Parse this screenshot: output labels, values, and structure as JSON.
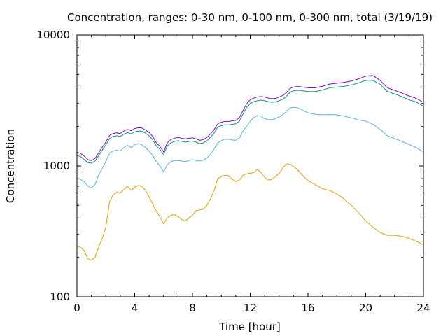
{
  "chart_data": {
    "type": "line",
    "title": "Concentration, ranges: 0-30 nm, 0-100 nm, 0-300 nm, total (3/19/19)",
    "xlabel": "Time [hour]",
    "ylabel": "Concentration",
    "xlim": [
      0,
      24
    ],
    "ylim": [
      100,
      10000
    ],
    "yscale": "log",
    "xticks": [
      "0",
      "4",
      "8",
      "12",
      "16",
      "20",
      "24"
    ],
    "yticks": [
      "100",
      "1000",
      "10000"
    ],
    "grid": false,
    "legend": false,
    "series": [
      {
        "color": "#e69f00",
        "x": [
          0,
          0.25,
          0.5,
          0.75,
          1,
          1.25,
          1.5,
          1.75,
          2,
          2.25,
          2.5,
          2.75,
          3,
          3.25,
          3.5,
          3.75,
          4,
          4.25,
          4.5,
          4.75,
          5,
          5.25,
          5.5,
          5.75,
          6,
          6.25,
          6.5,
          6.75,
          7,
          7.25,
          7.5,
          7.75,
          8,
          8.25,
          8.5,
          8.75,
          9,
          9.25,
          9.5,
          9.75,
          10,
          10.25,
          10.5,
          10.75,
          11,
          11.25,
          11.5,
          11.75,
          12,
          12.25,
          12.5,
          12.75,
          13,
          13.25,
          13.5,
          13.75,
          14,
          14.25,
          14.5,
          14.75,
          15,
          15.25,
          15.5,
          15.75,
          16,
          16.5,
          17,
          17.5,
          18,
          18.5,
          19,
          19.5,
          20,
          20.5,
          21,
          21.5,
          22,
          22.5,
          23,
          23.5,
          24
        ],
        "values": [
          245,
          238,
          225,
          195,
          190,
          200,
          240,
          280,
          340,
          530,
          600,
          630,
          620,
          660,
          700,
          650,
          690,
          710,
          700,
          650,
          580,
          510,
          450,
          410,
          360,
          400,
          420,
          425,
          410,
          390,
          380,
          400,
          420,
          455,
          460,
          470,
          500,
          560,
          650,
          800,
          830,
          850,
          840,
          790,
          760,
          780,
          850,
          870,
          880,
          890,
          940,
          890,
          820,
          780,
          790,
          830,
          880,
          960,
          1040,
          1030,
          990,
          940,
          880,
          820,
          770,
          720,
          670,
          650,
          610,
          560,
          500,
          440,
          380,
          340,
          310,
          295,
          295,
          290,
          280,
          265,
          250
        ]
      },
      {
        "color": "#56b4e9",
        "x": [
          0,
          0.25,
          0.5,
          0.75,
          1,
          1.25,
          1.5,
          1.75,
          2,
          2.25,
          2.5,
          2.75,
          3,
          3.25,
          3.5,
          3.75,
          4,
          4.25,
          4.5,
          4.75,
          5,
          5.25,
          5.5,
          5.75,
          6,
          6.25,
          6.5,
          6.75,
          7,
          7.25,
          7.5,
          7.75,
          8,
          8.25,
          8.5,
          8.75,
          9,
          9.25,
          9.5,
          9.75,
          10,
          10.25,
          10.5,
          10.75,
          11,
          11.25,
          11.5,
          11.75,
          12,
          12.25,
          12.5,
          12.75,
          13,
          13.25,
          13.5,
          13.75,
          14,
          14.25,
          14.5,
          14.75,
          15,
          15.25,
          15.5,
          15.75,
          16,
          16.5,
          17,
          17.5,
          18,
          18.5,
          19,
          19.5,
          20,
          20.5,
          21,
          21.5,
          22,
          22.5,
          23,
          23.5,
          24
        ],
        "values": [
          810,
          790,
          760,
          700,
          680,
          720,
          850,
          960,
          1080,
          1250,
          1300,
          1320,
          1300,
          1380,
          1440,
          1380,
          1450,
          1480,
          1450,
          1380,
          1300,
          1200,
          1080,
          1000,
          900,
          1020,
          1080,
          1100,
          1100,
          1090,
          1080,
          1100,
          1120,
          1100,
          1090,
          1110,
          1150,
          1230,
          1350,
          1500,
          1560,
          1600,
          1600,
          1580,
          1570,
          1640,
          1850,
          2000,
          2200,
          2350,
          2420,
          2400,
          2300,
          2260,
          2260,
          2300,
          2370,
          2460,
          2600,
          2780,
          2800,
          2780,
          2720,
          2620,
          2550,
          2480,
          2460,
          2470,
          2460,
          2400,
          2330,
          2250,
          2200,
          2080,
          1900,
          1700,
          1620,
          1540,
          1460,
          1380,
          1280
        ]
      },
      {
        "color": "#009e73",
        "x": [
          0,
          0.25,
          0.5,
          0.75,
          1,
          1.25,
          1.5,
          1.75,
          2,
          2.25,
          2.5,
          2.75,
          3,
          3.25,
          3.5,
          3.75,
          4,
          4.25,
          4.5,
          4.75,
          5,
          5.25,
          5.5,
          5.75,
          6,
          6.25,
          6.5,
          6.75,
          7,
          7.25,
          7.5,
          7.75,
          8,
          8.25,
          8.5,
          8.75,
          9,
          9.25,
          9.5,
          9.75,
          10,
          10.25,
          10.5,
          10.75,
          11,
          11.25,
          11.5,
          11.75,
          12,
          12.25,
          12.5,
          12.75,
          13,
          13.25,
          13.5,
          13.75,
          14,
          14.25,
          14.5,
          14.75,
          15,
          15.25,
          15.5,
          15.75,
          16,
          16.5,
          17,
          17.5,
          18,
          18.5,
          19,
          19.5,
          20,
          20.5,
          21,
          21.5,
          22,
          22.5,
          23,
          23.5,
          24
        ],
        "values": [
          1200,
          1180,
          1120,
          1060,
          1050,
          1090,
          1200,
          1320,
          1450,
          1620,
          1680,
          1700,
          1680,
          1750,
          1800,
          1760,
          1820,
          1850,
          1840,
          1780,
          1700,
          1580,
          1420,
          1340,
          1220,
          1420,
          1500,
          1540,
          1560,
          1540,
          1520,
          1540,
          1550,
          1520,
          1480,
          1500,
          1560,
          1660,
          1780,
          1980,
          2030,
          2060,
          2060,
          2080,
          2100,
          2200,
          2500,
          2800,
          3000,
          3100,
          3150,
          3180,
          3150,
          3100,
          3060,
          3080,
          3150,
          3230,
          3380,
          3650,
          3750,
          3780,
          3770,
          3730,
          3700,
          3700,
          3800,
          3950,
          4000,
          4050,
          4150,
          4300,
          4500,
          4500,
          4200,
          3700,
          3550,
          3380,
          3200,
          3080,
          2860
        ]
      },
      {
        "color": "#9400d3",
        "x": [
          0,
          0.25,
          0.5,
          0.75,
          1,
          1.25,
          1.5,
          1.75,
          2,
          2.25,
          2.5,
          2.75,
          3,
          3.25,
          3.5,
          3.75,
          4,
          4.25,
          4.5,
          4.75,
          5,
          5.25,
          5.5,
          5.75,
          6,
          6.25,
          6.5,
          6.75,
          7,
          7.25,
          7.5,
          7.75,
          8,
          8.25,
          8.5,
          8.75,
          9,
          9.25,
          9.5,
          9.75,
          10,
          10.25,
          10.5,
          10.75,
          11,
          11.25,
          11.5,
          11.75,
          12,
          12.25,
          12.5,
          12.75,
          13,
          13.25,
          13.5,
          13.75,
          14,
          14.25,
          14.5,
          14.75,
          15,
          15.25,
          15.5,
          15.75,
          16,
          16.5,
          17,
          17.5,
          18,
          18.5,
          19,
          19.5,
          20,
          20.5,
          21,
          21.5,
          22,
          22.5,
          23,
          23.5,
          24
        ],
        "values": [
          1270,
          1250,
          1190,
          1120,
          1100,
          1140,
          1260,
          1390,
          1520,
          1710,
          1770,
          1790,
          1770,
          1850,
          1900,
          1860,
          1930,
          1960,
          1950,
          1880,
          1800,
          1680,
          1500,
          1410,
          1280,
          1500,
          1590,
          1630,
          1650,
          1630,
          1610,
          1630,
          1640,
          1610,
          1570,
          1590,
          1650,
          1760,
          1890,
          2100,
          2160,
          2190,
          2190,
          2210,
          2230,
          2340,
          2650,
          2980,
          3200,
          3300,
          3360,
          3390,
          3360,
          3300,
          3260,
          3280,
          3360,
          3450,
          3620,
          3900,
          4010,
          4040,
          4030,
          3990,
          3950,
          3950,
          4060,
          4220,
          4280,
          4340,
          4450,
          4620,
          4850,
          4900,
          4500,
          3950,
          3780,
          3600,
          3420,
          3280,
          3060
        ]
      }
    ]
  }
}
